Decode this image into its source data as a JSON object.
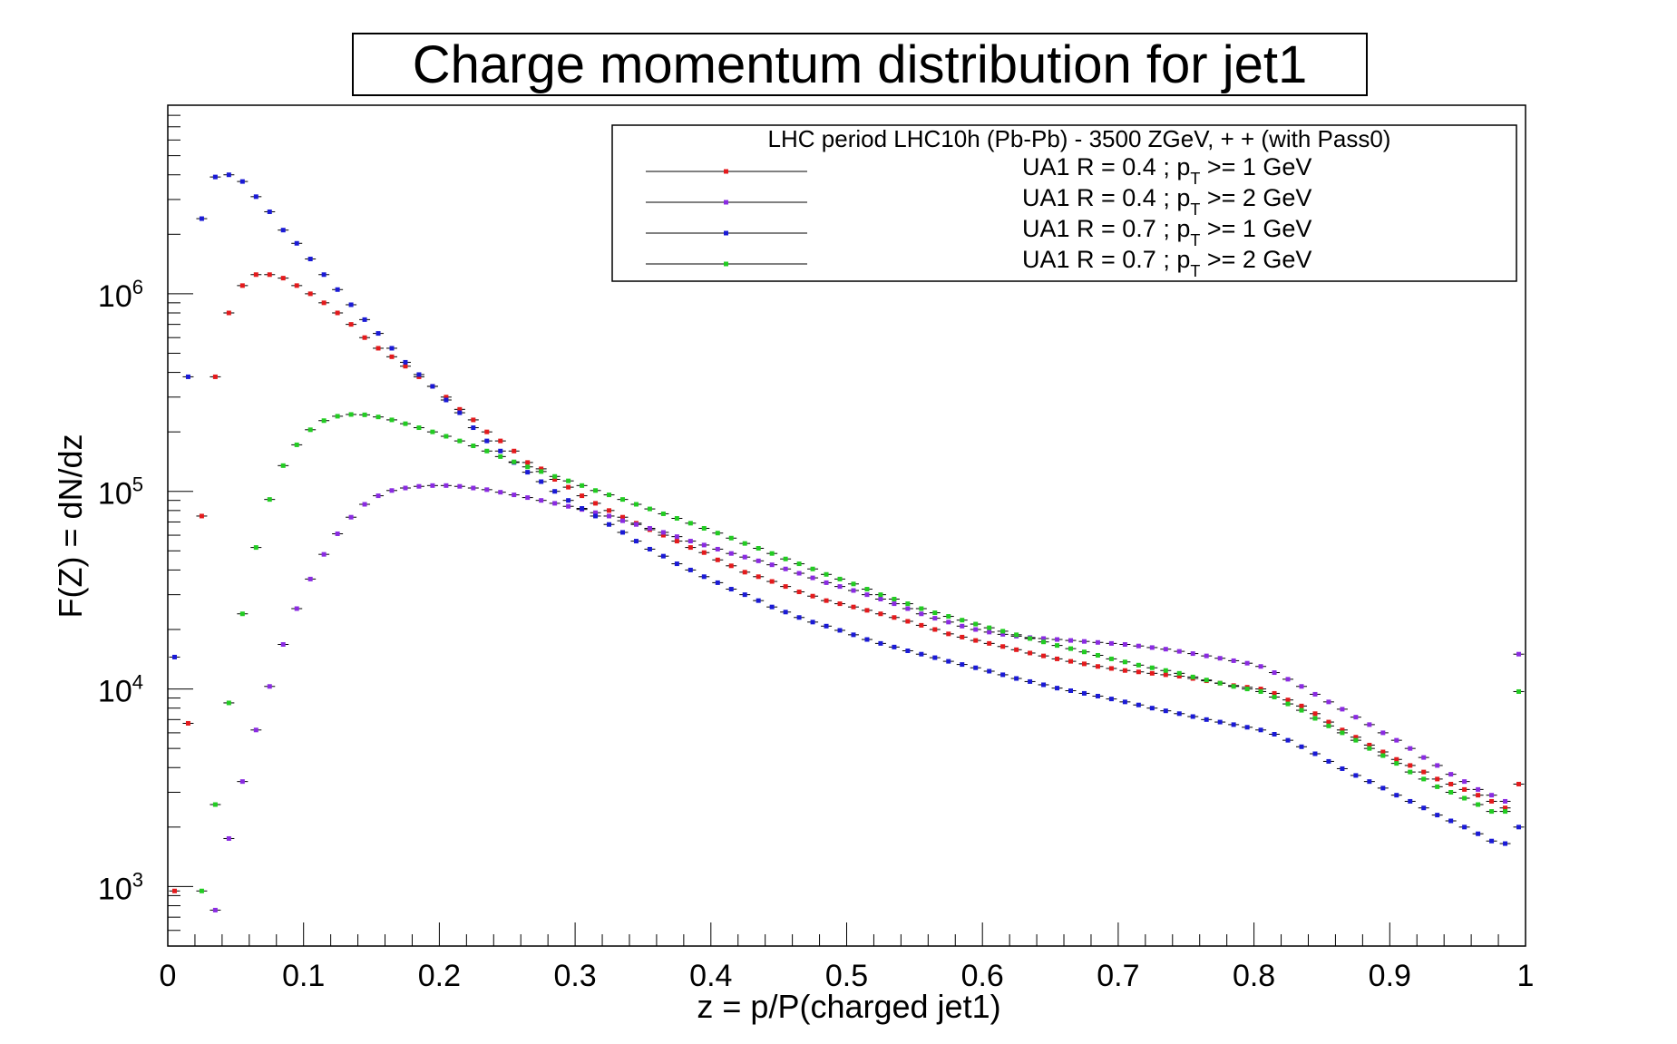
{
  "chart_data": {
    "type": "scatter",
    "title": "Charge momentum distribution for jet1",
    "xlabel": "z = p/P(charged jet1)",
    "ylabel": "F(Z) = dN/dz",
    "xlim": [
      0,
      1
    ],
    "ylim": [
      500,
      9000000
    ],
    "yscale": "log",
    "x_ticks": [
      "0",
      "0.1",
      "0.2",
      "0.3",
      "0.4",
      "0.5",
      "0.6",
      "0.7",
      "0.8",
      "0.9",
      "1"
    ],
    "y_ticks": [
      {
        "value": 1000,
        "base": "10",
        "exp": "3"
      },
      {
        "value": 10000,
        "base": "10",
        "exp": "4"
      },
      {
        "value": 100000,
        "base": "10",
        "exp": "5"
      },
      {
        "value": 1000000,
        "base": "10",
        "exp": "6"
      }
    ],
    "legend": {
      "header": "LHC period LHC10h (Pb-Pb) - 3500 ZGeV, + + (with Pass0)",
      "position": "top-right"
    },
    "x": [
      0.005,
      0.015,
      0.025,
      0.035,
      0.045,
      0.055,
      0.065,
      0.075,
      0.085,
      0.095,
      0.105,
      0.115,
      0.125,
      0.135,
      0.145,
      0.155,
      0.165,
      0.175,
      0.185,
      0.195,
      0.205,
      0.215,
      0.225,
      0.235,
      0.245,
      0.255,
      0.265,
      0.275,
      0.285,
      0.295,
      0.305,
      0.315,
      0.325,
      0.335,
      0.345,
      0.355,
      0.365,
      0.375,
      0.385,
      0.395,
      0.405,
      0.415,
      0.425,
      0.435,
      0.445,
      0.455,
      0.465,
      0.475,
      0.485,
      0.495,
      0.505,
      0.515,
      0.525,
      0.535,
      0.545,
      0.555,
      0.565,
      0.575,
      0.585,
      0.595,
      0.605,
      0.615,
      0.625,
      0.635,
      0.645,
      0.655,
      0.665,
      0.675,
      0.685,
      0.695,
      0.705,
      0.715,
      0.725,
      0.735,
      0.745,
      0.755,
      0.765,
      0.775,
      0.785,
      0.795,
      0.805,
      0.815,
      0.825,
      0.835,
      0.845,
      0.855,
      0.865,
      0.875,
      0.885,
      0.895,
      0.905,
      0.915,
      0.925,
      0.935,
      0.945,
      0.955,
      0.965,
      0.975,
      0.985,
      0.995
    ],
    "series": [
      {
        "pt_text": ">= 1 GeV",
        "prefix": "UA1 R = 0.4 ; p",
        "sub": "T",
        "color": "#e41a1c",
        "y": [
          950,
          6700,
          75000,
          380000,
          800000,
          1100000,
          1250000,
          1250000,
          1200000,
          1100000,
          1000000,
          900000,
          800000,
          700000,
          600000,
          530000,
          480000,
          430000,
          380000,
          340000,
          300000,
          260000,
          230000,
          200000,
          180000,
          160000,
          140000,
          130000,
          115000,
          105000,
          95000,
          87000,
          80000,
          74000,
          69000,
          64000,
          60000,
          56000,
          52000,
          49000,
          45000,
          42000,
          39000,
          37000,
          35000,
          33000,
          31000,
          29500,
          28000,
          27000,
          26000,
          25000,
          24000,
          23000,
          22000,
          21000,
          20000,
          19000,
          18300,
          17600,
          17000,
          16400,
          15800,
          15200,
          14700,
          14200,
          13800,
          13400,
          13000,
          12700,
          12400,
          12200,
          12000,
          11800,
          11600,
          11300,
          11000,
          10700,
          10400,
          10200,
          10000,
          9500,
          8800,
          8200,
          7500,
          6800,
          6200,
          5700,
          5200,
          4800,
          4400,
          4100,
          3800,
          3500,
          3300,
          3100,
          2900,
          2700,
          2500,
          3300
        ]
      },
      {
        "pt_text": ">= 2 GeV",
        "prefix": "UA1 R = 0.4 ; p",
        "sub": "T",
        "color": "#8a2be2",
        "y": [
          null,
          null,
          null,
          760,
          1750,
          3400,
          6200,
          10300,
          16800,
          25500,
          36000,
          48000,
          61000,
          74000,
          86000,
          95000,
          101000,
          104000,
          106000,
          107000,
          107000,
          106000,
          104000,
          102000,
          99000,
          96000,
          93000,
          90000,
          87000,
          84000,
          81000,
          78000,
          75000,
          71000,
          68000,
          65000,
          62000,
          59000,
          56000,
          53500,
          51000,
          48500,
          46500,
          44500,
          42500,
          40500,
          38500,
          36500,
          34500,
          33000,
          31500,
          30000,
          28500,
          27000,
          25500,
          24000,
          22800,
          21800,
          20800,
          20000,
          19400,
          18900,
          18500,
          18200,
          18000,
          17800,
          17600,
          17400,
          17200,
          17000,
          16800,
          16500,
          16200,
          15900,
          15500,
          15100,
          14700,
          14300,
          13900,
          13500,
          13000,
          12100,
          11200,
          10300,
          9400,
          8600,
          7900,
          7200,
          6600,
          6000,
          5500,
          5000,
          4500,
          4100,
          3700,
          3400,
          3100,
          2900,
          2700,
          15000
        ]
      },
      {
        "pt_text": ">= 1 GeV",
        "prefix": "UA1 R = 0.7 ; p",
        "sub": "T",
        "color": "#1a1ad6",
        "y": [
          14500,
          380000,
          2400000,
          3900000,
          4000000,
          3700000,
          3100000,
          2600000,
          2100000,
          1800000,
          1500000,
          1250000,
          1050000,
          880000,
          740000,
          630000,
          530000,
          450000,
          390000,
          340000,
          290000,
          250000,
          210000,
          180000,
          160000,
          140000,
          125000,
          112000,
          100000,
          90000,
          82000,
          75000,
          68000,
          62000,
          56000,
          51000,
          47000,
          43000,
          40000,
          37000,
          34500,
          32000,
          30000,
          28000,
          26000,
          24500,
          23000,
          21800,
          20800,
          19800,
          18800,
          17800,
          17000,
          16300,
          15600,
          15000,
          14400,
          13800,
          13300,
          12800,
          12300,
          11800,
          11300,
          10900,
          10500,
          10100,
          9800,
          9500,
          9200,
          8900,
          8600,
          8300,
          8000,
          7750,
          7500,
          7250,
          7000,
          6800,
          6600,
          6400,
          6200,
          5900,
          5500,
          5100,
          4700,
          4300,
          3950,
          3650,
          3400,
          3150,
          2900,
          2700,
          2500,
          2300,
          2150,
          2000,
          1850,
          1700,
          1650,
          2000
        ]
      },
      {
        "pt_text": ">= 2 GeV",
        "prefix": "UA1 R = 0.7 ; p",
        "sub": "T",
        "color": "#22cc22",
        "y": [
          null,
          null,
          950,
          2600,
          8500,
          24000,
          52000,
          91000,
          135000,
          172000,
          205000,
          228000,
          240000,
          245000,
          244000,
          238000,
          230000,
          220000,
          210000,
          200000,
          190000,
          180000,
          170000,
          160000,
          150000,
          141000,
          133000,
          126000,
          119000,
          113000,
          107000,
          101000,
          96000,
          91000,
          86000,
          81500,
          77000,
          73000,
          69000,
          65000,
          61500,
          58000,
          54500,
          51500,
          48500,
          45500,
          43000,
          40500,
          38000,
          36000,
          34000,
          32000,
          30000,
          28500,
          27000,
          25500,
          24300,
          23300,
          22300,
          21300,
          20400,
          19600,
          18800,
          18000,
          17300,
          16600,
          16000,
          15400,
          14800,
          14200,
          13700,
          13200,
          12800,
          12400,
          12000,
          11500,
          11100,
          10700,
          10300,
          10000,
          9700,
          9100,
          8400,
          7800,
          7100,
          6500,
          6000,
          5500,
          5000,
          4600,
          4200,
          3800,
          3500,
          3200,
          3000,
          2800,
          2600,
          2400,
          2400,
          9700
        ]
      }
    ]
  }
}
